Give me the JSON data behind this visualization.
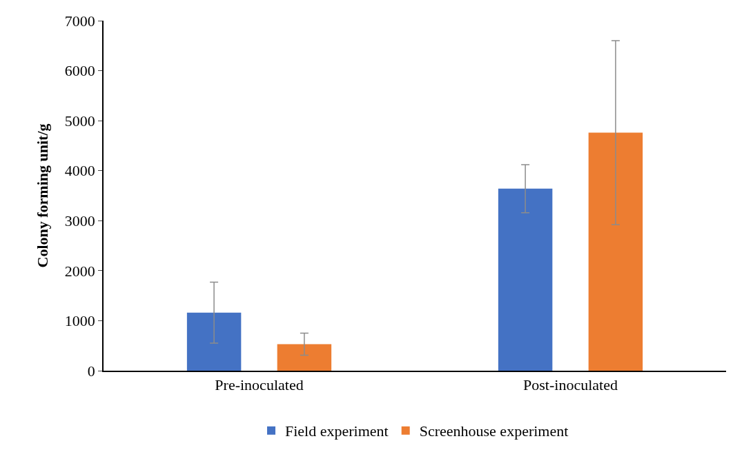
{
  "chart_data": {
    "type": "bar",
    "ylabel": "Colony forming unit/g",
    "categories": [
      "Pre-inoculated",
      "Post-inoculated"
    ],
    "series": [
      {
        "name": "Field experiment",
        "color": "#4472c4",
        "values": [
          1160,
          3640
        ],
        "errors": [
          610,
          480
        ]
      },
      {
        "name": "Screenhouse experiment",
        "color": "#ed7d31",
        "values": [
          530,
          4760
        ],
        "errors": [
          220,
          1840
        ]
      }
    ],
    "ylim": [
      0,
      7000
    ],
    "yticks": [
      0,
      1000,
      2000,
      3000,
      4000,
      5000,
      6000,
      7000
    ],
    "grid": false,
    "legend": "bottom"
  }
}
